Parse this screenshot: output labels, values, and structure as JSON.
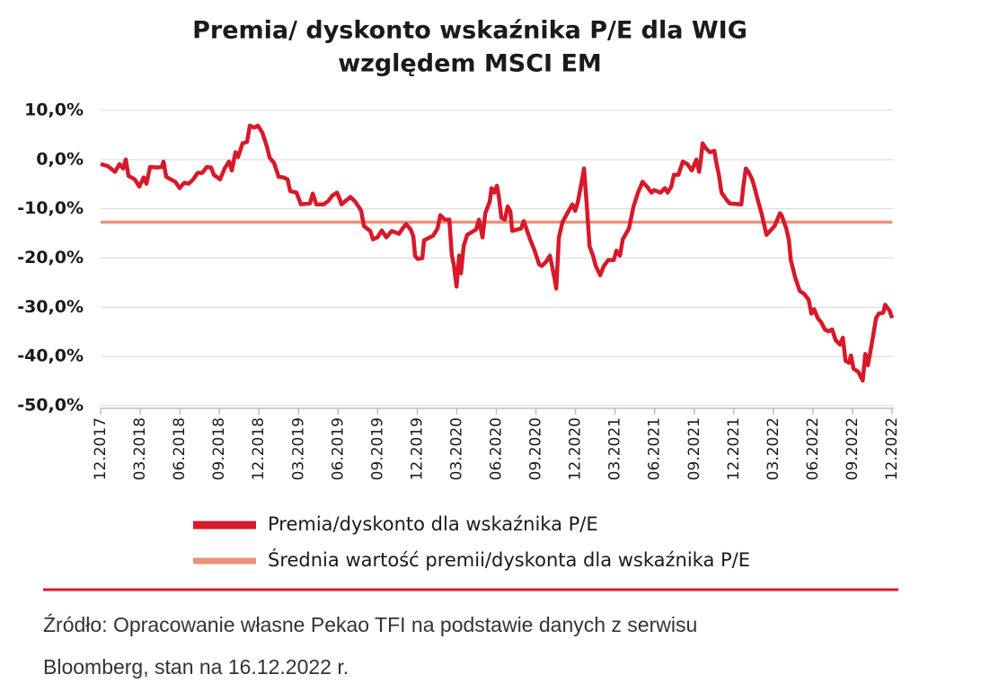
{
  "chart_data": {
    "type": "line",
    "title": [
      "Premia/ dyskonto wskaźnika P/E dla WIG",
      "względem MSCI EM"
    ],
    "xlim": [
      0,
      60
    ],
    "xticks": [
      {
        "value": 0,
        "label": "12.2017"
      },
      {
        "value": 3,
        "label": "03.2018"
      },
      {
        "value": 6,
        "label": "06.2018"
      },
      {
        "value": 9,
        "label": "09.2018"
      },
      {
        "value": 12,
        "label": "12.2018"
      },
      {
        "value": 15,
        "label": "03.2019"
      },
      {
        "value": 18,
        "label": "06.2019"
      },
      {
        "value": 21,
        "label": "09.2019"
      },
      {
        "value": 24,
        "label": "12.2019"
      },
      {
        "value": 27,
        "label": "03.2020"
      },
      {
        "value": 30,
        "label": "06.2020"
      },
      {
        "value": 33,
        "label": "09.2020"
      },
      {
        "value": 36,
        "label": "12.2020"
      },
      {
        "value": 39,
        "label": "03.2021"
      },
      {
        "value": 42,
        "label": "06.2021"
      },
      {
        "value": 45,
        "label": "09.2021"
      },
      {
        "value": 48,
        "label": "12.2021"
      },
      {
        "value": 51,
        "label": "03.2022"
      },
      {
        "value": 54,
        "label": "06.2022"
      },
      {
        "value": 57,
        "label": "09.2022"
      },
      {
        "value": 60,
        "label": "12.2022"
      }
    ],
    "ylim": [
      -50,
      10
    ],
    "yticks": [
      {
        "value": 10,
        "label": "10,0%"
      },
      {
        "value": 0,
        "label": "0,0%"
      },
      {
        "value": -10,
        "label": "-10,0%"
      },
      {
        "value": -20,
        "label": "-20,0%"
      },
      {
        "value": -30,
        "label": "-30,0%"
      },
      {
        "value": -40,
        "label": "-40,0%"
      },
      {
        "value": -50,
        "label": "-50,0%"
      }
    ],
    "grid": true,
    "series": [
      {
        "name": "Premia/dyskonto dla wskaźnika P/E",
        "color": "#d7192a",
        "x": [
          0,
          0.54,
          1.09,
          1.43,
          1.7,
          1.91,
          2.11,
          2.59,
          2.93,
          3.27,
          3.47,
          3.75,
          4.29,
          4.63,
          4.77,
          4.97,
          5.31,
          5.65,
          5.99,
          6.34,
          6.68,
          7.02,
          7.36,
          7.7,
          8.04,
          8.38,
          8.58,
          9.06,
          9.4,
          9.74,
          9.95,
          10.22,
          10.42,
          10.76,
          11.1,
          11.31,
          11.65,
          11.92,
          12.26,
          12.6,
          12.81,
          13.15,
          13.49,
          13.83,
          14.17,
          14.37,
          14.85,
          15.19,
          15.87,
          16.08,
          16.35,
          16.89,
          17.23,
          17.57,
          17.92,
          18.12,
          18.26,
          18.94,
          19.28,
          19.62,
          19.75,
          19.96,
          20.44,
          20.64,
          20.98,
          21.32,
          21.66,
          22.07,
          22.62,
          22.89,
          23.16,
          23.5,
          23.71,
          23.84,
          24.05,
          24.39,
          24.52,
          25.2,
          25.54,
          25.75,
          26.09,
          26.43,
          26.63,
          26.77,
          26.98,
          27.18,
          27.32,
          27.52,
          27.79,
          28.47,
          28.68,
          28.95,
          29.16,
          29.5,
          29.63,
          29.84,
          30.04,
          30.18,
          30.38,
          30.65,
          30.86,
          31.06,
          31.2,
          31.88,
          32.08,
          32.56,
          32.9,
          33.24,
          33.45,
          33.79,
          34.06,
          34.4,
          34.54,
          34.74,
          35.01,
          35.42,
          35.76,
          35.97,
          36.17,
          36.44,
          36.65,
          36.85,
          37.06,
          37.33,
          37.53,
          37.87,
          38.15,
          38.49,
          38.9,
          39.1,
          39.37,
          39.58,
          40.05,
          40.4,
          40.74,
          41.08,
          41.42,
          41.76,
          41.96,
          42.44,
          42.78,
          42.98,
          43.26,
          43.46,
          43.8,
          44.14,
          44.48,
          44.82,
          45.16,
          45.37,
          45.5,
          45.64,
          45.84,
          46.19,
          46.53,
          46.66,
          46.87,
          47.07,
          47.41,
          47.68,
          48.57,
          48.71,
          48.91,
          49.11,
          49.39,
          49.59,
          49.73,
          50.14,
          50.48,
          50.75,
          51.09,
          51.5,
          51.63,
          51.98,
          52.18,
          52.32,
          52.66,
          53.0,
          53.34,
          53.68,
          53.88,
          54.09,
          54.36,
          54.63,
          54.9,
          55.18,
          55.45,
          55.72,
          56.06,
          56.27,
          56.47,
          56.74,
          56.88,
          57.08,
          57.43,
          57.77,
          57.97,
          58.17,
          58.45,
          58.79,
          58.99,
          59.33,
          59.47,
          59.81,
          60.0
        ],
        "values": [
          -0.9,
          -1.3,
          -2.5,
          -0.9,
          -1.8,
          0,
          -3.3,
          -4.0,
          -5.5,
          -3.6,
          -4.9,
          -1.5,
          -1.6,
          -1.5,
          -0.4,
          -3.5,
          -4.0,
          -4.5,
          -5.8,
          -4.7,
          -4.9,
          -4.0,
          -2.7,
          -2.7,
          -1.5,
          -1.6,
          -3.1,
          -4.0,
          -1.8,
          -0.4,
          -2.2,
          1.5,
          0.5,
          3.3,
          3.6,
          6.9,
          6.5,
          6.9,
          5.5,
          2.7,
          0.4,
          -0.7,
          -3.5,
          -3.6,
          -4.0,
          -6.4,
          -6.7,
          -9.1,
          -8.9,
          -6.9,
          -9.1,
          -9.1,
          -8.5,
          -7.3,
          -6.7,
          -8.0,
          -9.1,
          -7.6,
          -8.5,
          -9.8,
          -10.4,
          -13.5,
          -14.5,
          -16.2,
          -15.8,
          -14.4,
          -15.8,
          -14.5,
          -15.1,
          -14.0,
          -13.1,
          -14.2,
          -15.6,
          -19.6,
          -20.2,
          -20.0,
          -16.4,
          -15.5,
          -14.0,
          -11.3,
          -12.2,
          -12.2,
          -19.5,
          -21.3,
          -25.8,
          -19.5,
          -23.1,
          -17.6,
          -15.3,
          -14.2,
          -12.2,
          -15.8,
          -10.9,
          -8.5,
          -5.8,
          -6.7,
          -5.3,
          -7.3,
          -11.8,
          -12.2,
          -9.5,
          -10.5,
          -14.5,
          -14.0,
          -12.5,
          -16.2,
          -18.5,
          -21.3,
          -21.6,
          -20.7,
          -19.5,
          -24.0,
          -26.2,
          -15.8,
          -12.7,
          -10.7,
          -9.1,
          -10.4,
          -8.7,
          -4.9,
          -1.8,
          -9.1,
          -17.6,
          -19.5,
          -21.6,
          -23.5,
          -21.6,
          -20.4,
          -20.4,
          -18.5,
          -19.5,
          -16.2,
          -14.0,
          -9.5,
          -6.7,
          -4.5,
          -5.5,
          -6.7,
          -6.2,
          -6.7,
          -5.8,
          -6.7,
          -5.5,
          -3.1,
          -3.1,
          -0.4,
          -0.9,
          -2.2,
          0,
          -2.5,
          0,
          3.3,
          2.4,
          1.5,
          1.8,
          -0.4,
          -3.1,
          -6.7,
          -8.0,
          -8.9,
          -9.1,
          -5.8,
          -1.8,
          -2.5,
          -4.0,
          -5.8,
          -7.3,
          -11.3,
          -15.3,
          -14.5,
          -13.5,
          -10.9,
          -11.3,
          -14.0,
          -16.4,
          -20.4,
          -24.0,
          -26.7,
          -27.3,
          -28.5,
          -31.3,
          -30.4,
          -32.2,
          -33.1,
          -34.5,
          -34.9,
          -34.5,
          -36.7,
          -37.6,
          -36.2,
          -40.9,
          -41.3,
          -39.8,
          -42.5,
          -43.1,
          -44.9,
          -39.5,
          -41.8,
          -37.6,
          -32.2,
          -31.3,
          -31.1,
          -29.5,
          -30.7,
          -32.2
        ]
      },
      {
        "name": "Średnia wartość premii/dyskonta dla wskaźnika P/E",
        "color": "#e8947a",
        "x": [
          0,
          60
        ],
        "values": [
          -12.7,
          -12.7
        ]
      }
    ],
    "source": [
      "Źródło: Opracowanie własne Pekao TFI na podstawie danych z serwisu",
      "Bloomberg, stan na 16.12.2022 r."
    ]
  }
}
